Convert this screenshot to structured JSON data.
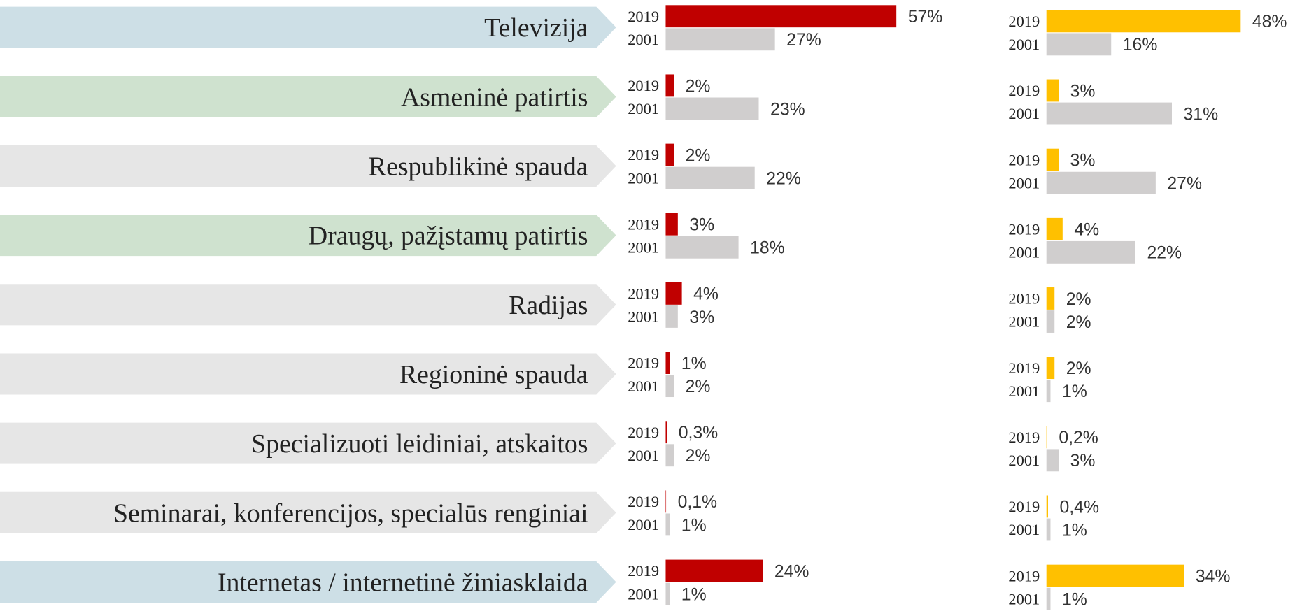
{
  "chart_data": [
    {
      "type": "bar",
      "categories": [
        "Televizija",
        "Asmeninė patirtis",
        "Respublikinė spauda",
        "Draugų, pažįstamų patirtis",
        "Radijas",
        "Regioninė spauda",
        "Specializuoti leidiniai, atskaitos",
        "Seminarai, konferencijos, specialūs renginiai",
        "Internetas / internetinė žiniasklaida"
      ],
      "category_colors": [
        "#cddfe6",
        "#cfe2cf",
        "#e6e6e6",
        "#cfe2cf",
        "#e6e6e6",
        "#e6e6e6",
        "#e6e6e6",
        "#e6e6e6",
        "#cddfe6"
      ],
      "series": [
        {
          "name": "2019",
          "color": "#c00000",
          "values": [
            57,
            2,
            2,
            3,
            4,
            1,
            0.3,
            0.1,
            24
          ],
          "value_labels": [
            "57%",
            "2%",
            "2%",
            "3%",
            "4%",
            "1%",
            "0,3%",
            "0,1%",
            "24%"
          ]
        },
        {
          "name": "2001",
          "color": "#d0cece",
          "values": [
            27,
            23,
            22,
            18,
            3,
            2,
            2,
            1,
            1
          ],
          "value_labels": [
            "27%",
            "23%",
            "22%",
            "18%",
            "3%",
            "2%",
            "2%",
            "1%",
            "1%"
          ]
        }
      ]
    },
    {
      "type": "bar",
      "series": [
        {
          "name": "2019",
          "color": "#ffc000",
          "values": [
            48,
            3,
            3,
            4,
            2,
            2,
            0.2,
            0.4,
            34
          ],
          "value_labels": [
            "48%",
            "3%",
            "3%",
            "4%",
            "2%",
            "2%",
            "0,2%",
            "0,4%",
            "34%"
          ]
        },
        {
          "name": "2001",
          "color": "#d0cece",
          "values": [
            16,
            31,
            27,
            22,
            2,
            1,
            3,
            1,
            1
          ],
          "value_labels": [
            "16%",
            "31%",
            "27%",
            "22%",
            "2%",
            "1%",
            "3%",
            "1%",
            "1%"
          ]
        }
      ]
    }
  ]
}
